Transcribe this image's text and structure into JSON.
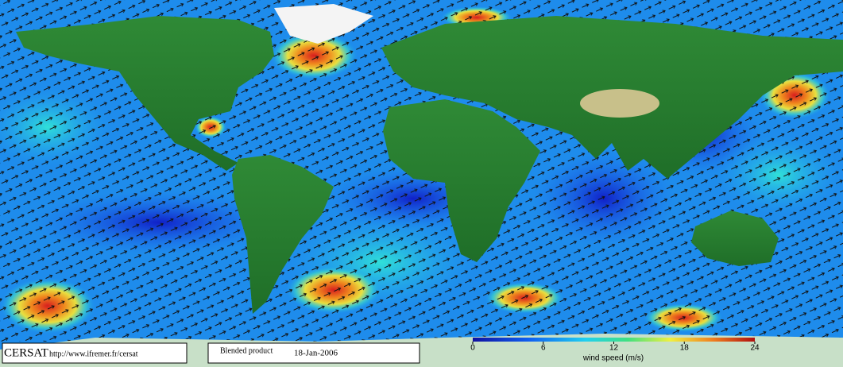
{
  "footer": {
    "logo": "CERSAT",
    "url": "http://www.ifremer.fr/cersat",
    "product": "Blended product",
    "date": "18-Jan-2006"
  },
  "colorbar": {
    "title": "wind speed (m/s)",
    "range": [
      0,
      24
    ],
    "ticks": [
      0,
      6,
      12,
      18,
      24
    ]
  }
}
